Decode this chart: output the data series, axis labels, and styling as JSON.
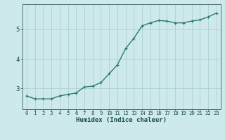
{
  "x": [
    0,
    1,
    2,
    3,
    4,
    5,
    6,
    7,
    8,
    9,
    10,
    11,
    12,
    13,
    14,
    15,
    16,
    17,
    18,
    19,
    20,
    21,
    22,
    23
  ],
  "y": [
    2.75,
    2.65,
    2.65,
    2.65,
    2.75,
    2.8,
    2.85,
    3.05,
    3.08,
    3.2,
    3.5,
    3.8,
    4.35,
    4.7,
    5.12,
    5.22,
    5.3,
    5.28,
    5.22,
    5.22,
    5.28,
    5.32,
    5.42,
    5.55
  ],
  "xlabel": "Humidex (Indice chaleur)",
  "ylabel": "",
  "xlim": [
    -0.5,
    23.5
  ],
  "ylim": [
    2.3,
    5.85
  ],
  "yticks": [
    3,
    4,
    5
  ],
  "xtick_labels": [
    "0",
    "1",
    "2",
    "3",
    "4",
    "5",
    "6",
    "7",
    "8",
    "9",
    "10",
    "11",
    "12",
    "13",
    "14",
    "15",
    "16",
    "17",
    "18",
    "19",
    "20",
    "21",
    "22",
    "23"
  ],
  "line_color": "#2d7b6c",
  "bg_color": "#cee9e9",
  "grid_color": "#aed0d0",
  "axis_color": "#4a6f6f",
  "tick_label_color": "#1a4a4a",
  "xlabel_color": "#1a4a4a"
}
